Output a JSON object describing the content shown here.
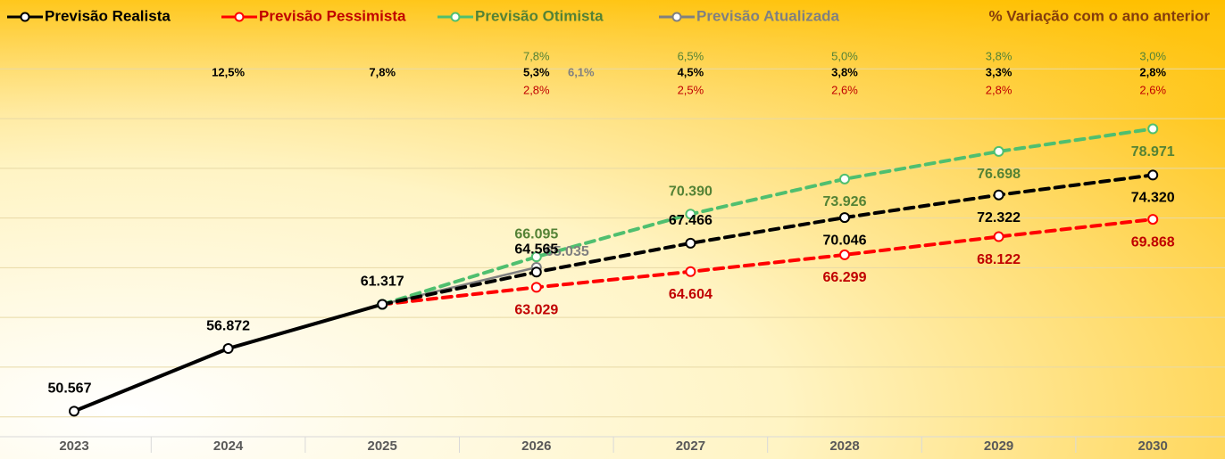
{
  "chart_data": {
    "type": "line",
    "annotation": "% Variação com o ano anterior",
    "categories": [
      "2023",
      "2024",
      "2025",
      "2026",
      "2027",
      "2028",
      "2029",
      "2030"
    ],
    "ylim": [
      48000,
      87000
    ],
    "yticks": [
      50000,
      55000,
      60000,
      65000,
      70000,
      75000,
      80000,
      85000
    ],
    "grid": true,
    "series": [
      {
        "name": "Previsão Realista",
        "color": "#000000",
        "label_color": "#000000",
        "values": [
          50567,
          56872,
          61317,
          64565,
          67466,
          70046,
          72322,
          74320
        ],
        "value_labels": [
          "50.567",
          "56.872",
          "61.317",
          "64.565",
          "67.466",
          "70.046",
          "72.322",
          "74.320"
        ],
        "changes": [
          null,
          12.5,
          7.8,
          5.3,
          4.5,
          3.8,
          3.3,
          2.8
        ],
        "change_labels": [
          null,
          "12,5%",
          "7,8%",
          "5,3%",
          "4,5%",
          "3,8%",
          "3,3%",
          "2,8%"
        ]
      },
      {
        "name": "Previsão Pessimista",
        "color": "#ff0000",
        "label_color": "#c00000",
        "values": [
          null,
          null,
          61317,
          63029,
          64604,
          66299,
          68122,
          69868
        ],
        "value_labels": [
          null,
          null,
          null,
          "63.029",
          "64.604",
          "66.299",
          "68.122",
          "69.868"
        ],
        "changes": [
          null,
          null,
          null,
          2.8,
          2.5,
          2.6,
          2.8,
          2.6
        ],
        "change_labels": [
          null,
          null,
          null,
          "2,8%",
          "2,5%",
          "2,6%",
          "2,8%",
          "2,6%"
        ]
      },
      {
        "name": "Previsão Otimista",
        "color": "#4fbf6f",
        "label_color": "#548235",
        "values": [
          null,
          null,
          61317,
          66095,
          70390,
          73926,
          76698,
          78971
        ],
        "value_labels": [
          null,
          null,
          null,
          "66.095",
          "70.390",
          "73.926",
          "76.698",
          "78.971"
        ],
        "changes": [
          null,
          null,
          null,
          7.8,
          6.5,
          5.0,
          3.8,
          3.0
        ],
        "change_labels": [
          null,
          null,
          null,
          "7,8%",
          "6,5%",
          "5,0%",
          "3,8%",
          "3,0%"
        ]
      },
      {
        "name": "Previsão Atualizada",
        "color": "#808080",
        "label_color": "#808080",
        "values": [
          null,
          null,
          61317,
          65035,
          null,
          null,
          null,
          null
        ],
        "value_labels": [
          null,
          null,
          null,
          "65.035",
          null,
          null,
          null,
          null
        ],
        "changes": [
          null,
          null,
          null,
          6.1,
          null,
          null,
          null,
          null
        ],
        "change_labels": [
          null,
          null,
          null,
          "6,1%",
          null,
          null,
          null,
          null
        ]
      }
    ]
  }
}
